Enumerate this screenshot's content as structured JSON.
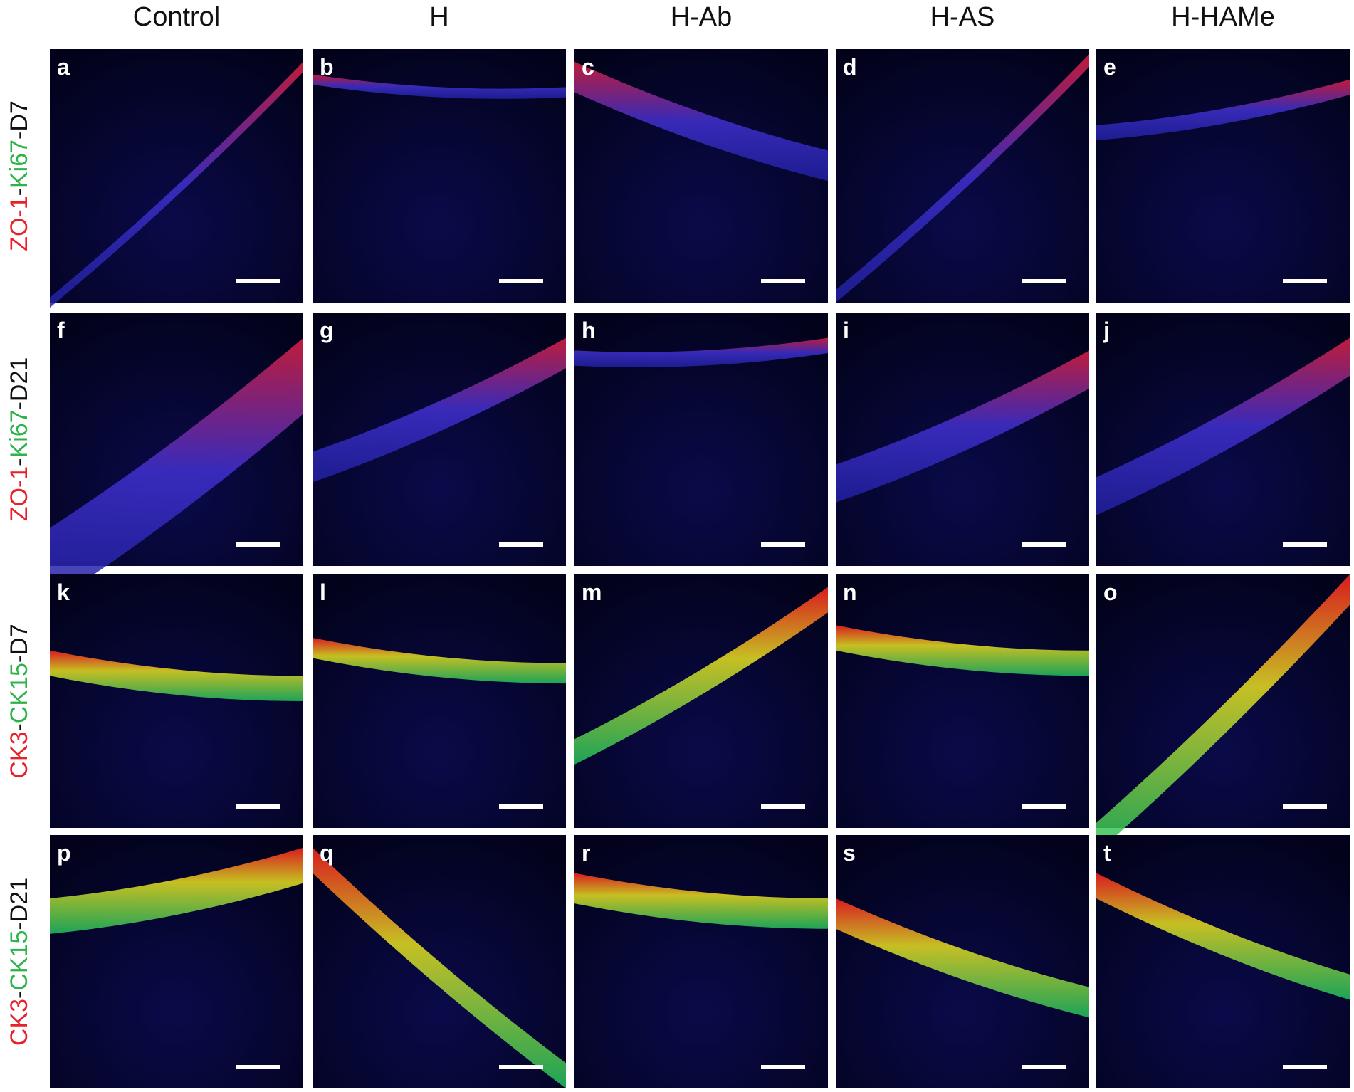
{
  "columns": [
    "Control",
    "H",
    "H-Ab",
    "H-AS",
    "H-HAMe"
  ],
  "rows": [
    {
      "label": [
        {
          "text": "ZO-1",
          "color": "#e8202a"
        },
        {
          "text": "-",
          "color": "#111111"
        },
        {
          "text": "Ki67",
          "color": "#2db34a"
        },
        {
          "text": "-D7",
          "color": "#111111"
        }
      ]
    },
    {
      "label": [
        {
          "text": "ZO-1",
          "color": "#e8202a"
        },
        {
          "text": "-",
          "color": "#111111"
        },
        {
          "text": "Ki67",
          "color": "#2db34a"
        },
        {
          "text": "-D21",
          "color": "#111111"
        }
      ]
    },
    {
      "label": [
        {
          "text": "CK3",
          "color": "#e8202a"
        },
        {
          "text": "-",
          "color": "#111111"
        },
        {
          "text": "CK15",
          "color": "#2db34a"
        },
        {
          "text": "-D7",
          "color": "#111111"
        }
      ]
    },
    {
      "label": [
        {
          "text": "CK3",
          "color": "#e8202a"
        },
        {
          "text": "-",
          "color": "#111111"
        },
        {
          "text": "CK15",
          "color": "#2db34a"
        },
        {
          "text": "-D21",
          "color": "#111111"
        }
      ]
    }
  ],
  "panels": [
    [
      "a",
      "b",
      "c",
      "d",
      "e"
    ],
    [
      "f",
      "g",
      "h",
      "i",
      "j"
    ],
    [
      "k",
      "l",
      "m",
      "n",
      "o"
    ],
    [
      "p",
      "q",
      "r",
      "s",
      "t"
    ]
  ]
}
